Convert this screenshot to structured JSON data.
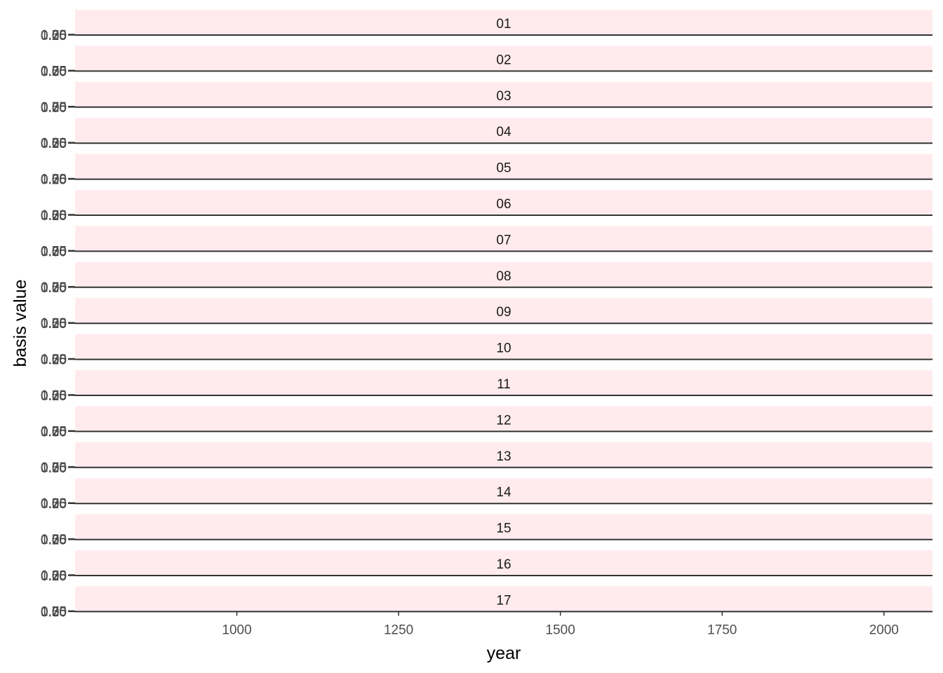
{
  "chart_data": {
    "type": "line",
    "xlabel": "year",
    "ylabel": "basis value",
    "x_ticks": [
      "1000",
      "1250",
      "1500",
      "1750",
      "2000"
    ],
    "x_tick_values": [
      1000,
      1250,
      1500,
      1750,
      2000
    ],
    "xlim": [
      750,
      2075
    ],
    "y_tick_labels": [
      "0.00",
      "0.25",
      "0.50",
      "0.75",
      "1.00"
    ],
    "ylim": [
      0,
      1
    ],
    "strip_color": "#ffebee",
    "line_color": "#333333",
    "panels": [
      {
        "label": "01",
        "x": [
          750,
          2075
        ],
        "y": [
          0,
          0
        ]
      },
      {
        "label": "02",
        "x": [
          750,
          2075
        ],
        "y": [
          0,
          0
        ]
      },
      {
        "label": "03",
        "x": [
          750,
          2075
        ],
        "y": [
          0,
          0
        ]
      },
      {
        "label": "04",
        "x": [
          750,
          2075
        ],
        "y": [
          0,
          0
        ]
      },
      {
        "label": "05",
        "x": [
          750,
          2075
        ],
        "y": [
          0,
          0
        ]
      },
      {
        "label": "06",
        "x": [
          750,
          2075
        ],
        "y": [
          0,
          0
        ]
      },
      {
        "label": "07",
        "x": [
          750,
          2075
        ],
        "y": [
          0,
          0
        ]
      },
      {
        "label": "08",
        "x": [
          750,
          2075
        ],
        "y": [
          0,
          0
        ]
      },
      {
        "label": "09",
        "x": [
          750,
          2075
        ],
        "y": [
          0,
          0
        ]
      },
      {
        "label": "10",
        "x": [
          750,
          2075
        ],
        "y": [
          0,
          0
        ]
      },
      {
        "label": "11",
        "x": [
          750,
          2075
        ],
        "y": [
          0,
          0
        ]
      },
      {
        "label": "12",
        "x": [
          750,
          2075
        ],
        "y": [
          0,
          0
        ]
      },
      {
        "label": "13",
        "x": [
          750,
          2075
        ],
        "y": [
          0,
          0
        ]
      },
      {
        "label": "14",
        "x": [
          750,
          2075
        ],
        "y": [
          0,
          0
        ]
      },
      {
        "label": "15",
        "x": [
          750,
          2075
        ],
        "y": [
          0,
          0
        ]
      },
      {
        "label": "16",
        "x": [
          750,
          2075
        ],
        "y": [
          0,
          0
        ]
      },
      {
        "label": "17",
        "x": [
          750,
          2075
        ],
        "y": [
          0,
          0
        ]
      }
    ]
  }
}
